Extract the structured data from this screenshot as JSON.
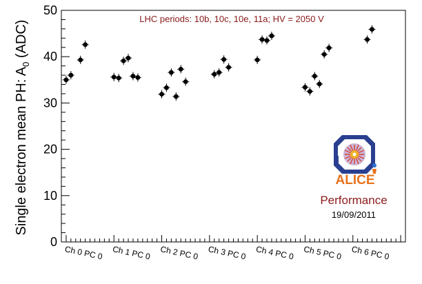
{
  "chart_data": {
    "type": "scatter",
    "title": "LHC periods: 10b, 10c, 10e, 11a; HV = 2050 V",
    "xlabel": "",
    "ylabel_main": "Single electron mean PH: A",
    "ylabel_sub": "0",
    "ylabel_unit": " (ADC)",
    "ylim": [
      0,
      50
    ],
    "yticks": [
      0,
      10,
      20,
      30,
      40,
      50
    ],
    "grid": false,
    "categories": [
      "Ch 0 PC 0",
      "Ch 1 PC 0",
      "Ch 2 PC 0",
      "Ch 3 PC 0",
      "Ch 4 PC 0",
      "Ch 5 PC 0",
      "Ch 6 PC 0"
    ],
    "points": [
      {
        "ch": 0,
        "slot": 0.0,
        "y": 35.0
      },
      {
        "ch": 0,
        "slot": 1.0,
        "y": 36.0
      },
      {
        "ch": 0,
        "slot": 3.0,
        "y": 39.3
      },
      {
        "ch": 0,
        "slot": 4.0,
        "y": 42.6
      },
      {
        "ch": 1,
        "slot": 0.0,
        "y": 35.6
      },
      {
        "ch": 1,
        "slot": 1.0,
        "y": 35.4
      },
      {
        "ch": 1,
        "slot": 2.0,
        "y": 39.1
      },
      {
        "ch": 1,
        "slot": 3.0,
        "y": 39.7
      },
      {
        "ch": 1,
        "slot": 4.0,
        "y": 35.8
      },
      {
        "ch": 1,
        "slot": 5.0,
        "y": 35.5
      },
      {
        "ch": 2,
        "slot": 0.0,
        "y": 31.9
      },
      {
        "ch": 2,
        "slot": 1.0,
        "y": 33.3
      },
      {
        "ch": 2,
        "slot": 2.0,
        "y": 36.6
      },
      {
        "ch": 2,
        "slot": 3.0,
        "y": 31.4
      },
      {
        "ch": 2,
        "slot": 4.0,
        "y": 37.3
      },
      {
        "ch": 2,
        "slot": 5.0,
        "y": 34.6
      },
      {
        "ch": 3,
        "slot": 1.0,
        "y": 36.2
      },
      {
        "ch": 3,
        "slot": 2.0,
        "y": 36.6
      },
      {
        "ch": 3,
        "slot": 3.0,
        "y": 39.4
      },
      {
        "ch": 3,
        "slot": 4.0,
        "y": 37.7
      },
      {
        "ch": 4,
        "slot": 0.0,
        "y": 39.3
      },
      {
        "ch": 4,
        "slot": 1.0,
        "y": 43.7
      },
      {
        "ch": 4,
        "slot": 2.0,
        "y": 43.5
      },
      {
        "ch": 4,
        "slot": 3.0,
        "y": 44.5
      },
      {
        "ch": 5,
        "slot": 0.0,
        "y": 33.4
      },
      {
        "ch": 5,
        "slot": 1.0,
        "y": 32.5
      },
      {
        "ch": 5,
        "slot": 2.0,
        "y": 35.8
      },
      {
        "ch": 5,
        "slot": 3.0,
        "y": 34.1
      },
      {
        "ch": 5,
        "slot": 4.0,
        "y": 40.5
      },
      {
        "ch": 5,
        "slot": 5.0,
        "y": 41.9
      },
      {
        "ch": 6,
        "slot": 3.0,
        "y": 43.7
      },
      {
        "ch": 6,
        "slot": 4.0,
        "y": 45.9
      }
    ]
  },
  "logo": {
    "name": "ALICE",
    "performance_label": "Performance",
    "date": "19/09/2011",
    "colors": {
      "frame": "#2a3f8f",
      "text": "#e8721c",
      "title": "#8b1a1a"
    }
  }
}
